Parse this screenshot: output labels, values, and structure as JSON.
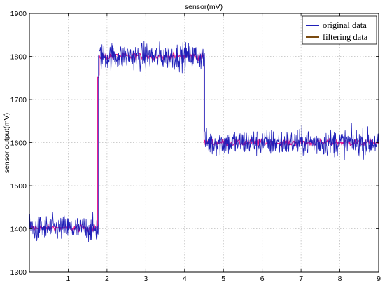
{
  "chart_data": {
    "type": "line",
    "title": "sensor(mV)",
    "xlabel": "",
    "ylabel": "sensor output(mV)",
    "xlim": [
      0,
      9
    ],
    "ylim": [
      1300,
      1900
    ],
    "x_ticks": [
      "1",
      "2",
      "3",
      "4",
      "5",
      "6",
      "7",
      "8",
      "9"
    ],
    "y_ticks": [
      "1300",
      "1400",
      "1500",
      "1600",
      "1700",
      "1800",
      "1900"
    ],
    "grid": true,
    "legend_position": "top-right",
    "noise_amplitude_mV": 22,
    "series": [
      {
        "name": "original data",
        "color": "#1f1fb8",
        "style": "noisy",
        "segments": [
          {
            "x_start": 0,
            "x_end": 1.78,
            "level": 1400
          },
          {
            "x_start": 1.78,
            "x_end": 4.52,
            "level": 1800
          },
          {
            "x_start": 4.52,
            "x_end": 9,
            "level": 1600
          }
        ]
      },
      {
        "name": "filtering data",
        "color": "#e8128c",
        "legend_color": "#7a4a10",
        "style": "smooth",
        "segments": [
          {
            "x_start": 0,
            "x_end": 1.76,
            "level": 1402
          },
          {
            "x_start": 1.76,
            "x_end": 1.8,
            "level": 1748
          },
          {
            "x_start": 1.8,
            "x_end": 4.5,
            "level": 1800
          },
          {
            "x_start": 4.5,
            "x_end": 9,
            "level": 1600
          }
        ]
      }
    ]
  }
}
